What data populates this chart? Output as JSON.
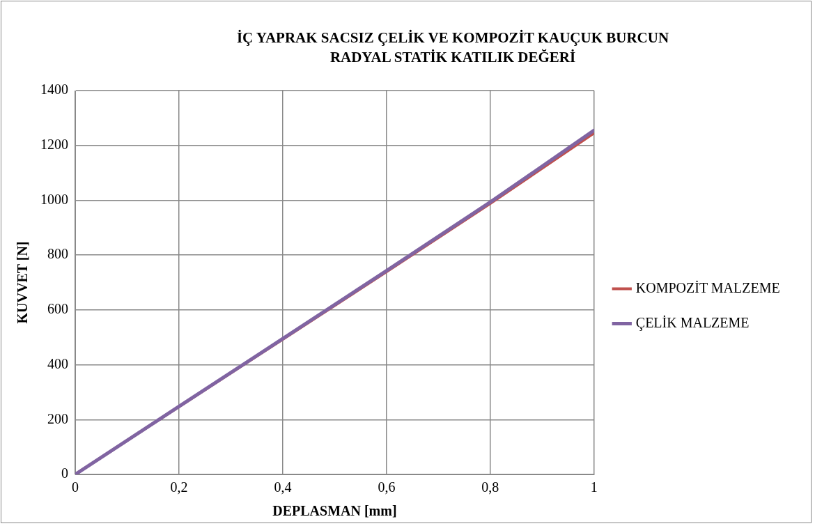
{
  "chart_data": {
    "type": "line",
    "title": "İÇ YAPRAK SACSIZ ÇELİK VE KOMPOZİT KAUÇUK BURCUN RADYAL STATİK KATILIK DEĞERİ",
    "xlabel": "DEPLASMAN [mm]",
    "ylabel": "KUVVET [N]",
    "x": [
      0,
      0.2,
      0.4,
      0.6,
      0.8,
      1
    ],
    "series": [
      {
        "name": "KOMPOZİT MALZEME",
        "color": "#c0504d",
        "values": [
          0,
          247,
          493,
          739,
          988,
          1245
        ]
      },
      {
        "name": "ÇELİK MALZEME",
        "color": "#8064a2",
        "values": [
          0,
          248,
          495,
          743,
          993,
          1255
        ]
      }
    ],
    "xlim": [
      0,
      1
    ],
    "xticks": [
      0,
      {
        "value": 0.2,
        "label": "0,2"
      },
      {
        "value": 0.4,
        "label": "0,4"
      },
      {
        "value": 0.6,
        "label": "0,6"
      },
      {
        "value": 0.8,
        "label": "0,8"
      },
      1
    ],
    "ylim": [
      0,
      1400
    ],
    "yticks": [
      0,
      200,
      400,
      600,
      800,
      1000,
      1200,
      1400
    ],
    "grid": true,
    "legend": "right",
    "marker": "none",
    "line_style": "solid"
  }
}
